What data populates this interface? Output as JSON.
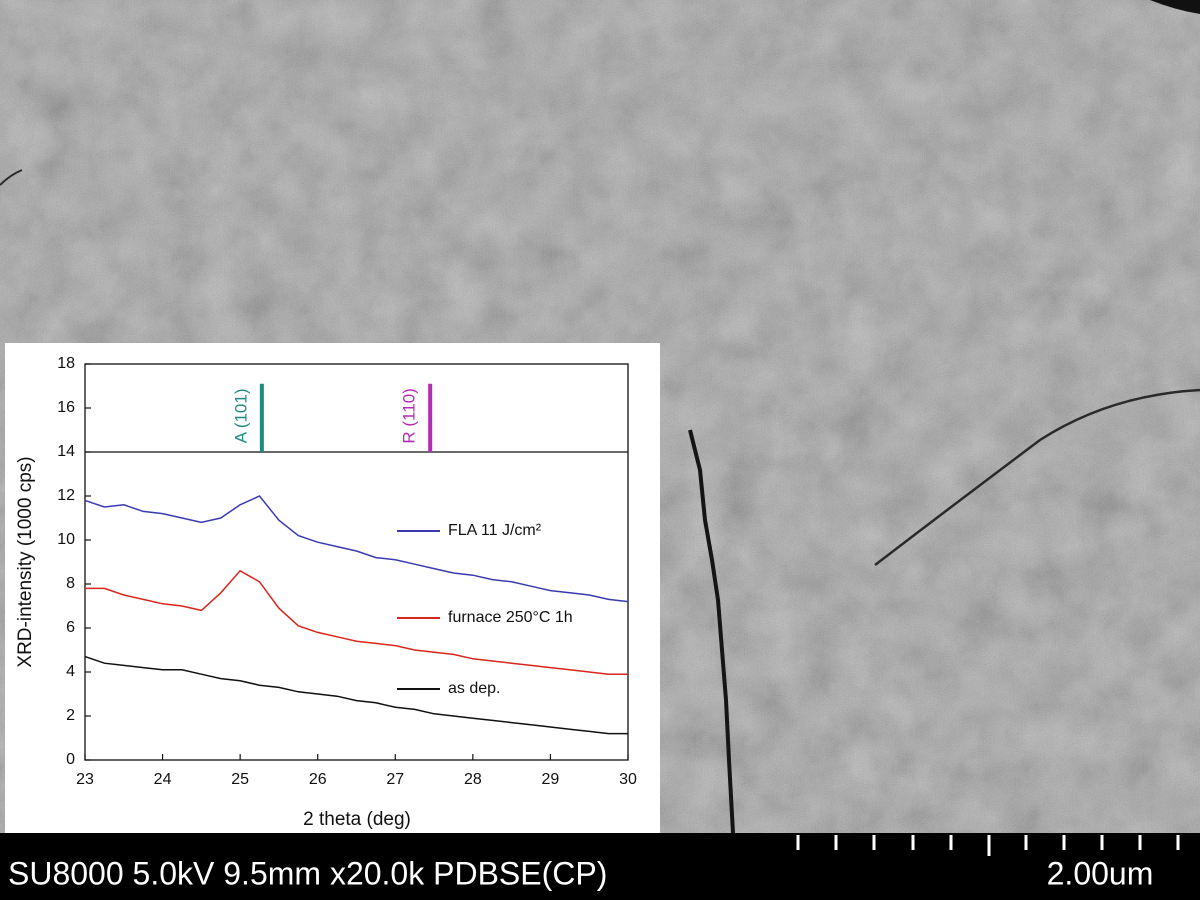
{
  "chart_data": {
    "type": "line",
    "xlabel": "2 theta (deg)",
    "ylabel": "XRD-intensity (1000 cps)",
    "x": [
      23,
      23.25,
      23.5,
      23.75,
      24,
      24.25,
      24.5,
      24.75,
      25,
      25.25,
      25.5,
      25.75,
      26,
      26.25,
      26.5,
      26.75,
      27,
      27.25,
      27.5,
      27.75,
      28,
      28.25,
      28.5,
      28.75,
      29,
      29.25,
      29.5,
      29.75,
      30
    ],
    "series": [
      {
        "name": "FLA 11 J/cm²",
        "color": "#3b3ab0",
        "values": [
          11.8,
          11.5,
          11.6,
          11.3,
          11.2,
          11.0,
          10.8,
          11.0,
          11.6,
          12.0,
          10.9,
          10.2,
          9.9,
          9.7,
          9.5,
          9.2,
          9.1,
          8.9,
          8.7,
          8.5,
          8.4,
          8.2,
          8.1,
          7.9,
          7.7,
          7.6,
          7.5,
          7.3,
          7.2
        ]
      },
      {
        "name": "furnace 250°C 1h",
        "color": "#d8261c",
        "values": [
          7.8,
          7.8,
          7.5,
          7.3,
          7.1,
          7.0,
          6.8,
          7.6,
          8.6,
          8.1,
          6.9,
          6.1,
          5.8,
          5.6,
          5.4,
          5.3,
          5.2,
          5.0,
          4.9,
          4.8,
          4.6,
          4.5,
          4.4,
          4.3,
          4.2,
          4.1,
          4.0,
          3.9,
          3.9
        ]
      },
      {
        "name": "as dep.",
        "color": "#111111",
        "values": [
          4.7,
          4.4,
          4.3,
          4.2,
          4.1,
          4.1,
          3.9,
          3.7,
          3.6,
          3.4,
          3.3,
          3.1,
          3.0,
          2.9,
          2.7,
          2.6,
          2.4,
          2.3,
          2.1,
          2.0,
          1.9,
          1.8,
          1.7,
          1.6,
          1.5,
          1.4,
          1.3,
          1.2,
          1.2
        ]
      }
    ],
    "reference_lines": [
      {
        "label": "A (101)",
        "x": 25.28,
        "top": 17.1,
        "color": "#1f8a80"
      },
      {
        "label": "R (110)",
        "x": 27.45,
        "top": 17.1,
        "color": "#b42bb4"
      }
    ],
    "divider": 14,
    "xlim": [
      23,
      30
    ],
    "xticks": [
      23,
      24,
      25,
      26,
      27,
      28,
      29,
      30
    ],
    "ylim": [
      0,
      18
    ],
    "yticks": [
      0,
      2,
      4,
      6,
      8,
      10,
      12,
      14,
      16,
      18
    ]
  },
  "footer": {
    "caption": "SU8000 5.0kV 9.5mm x20.0k PDBSE(CP)",
    "scale_bar": "2.00um"
  }
}
